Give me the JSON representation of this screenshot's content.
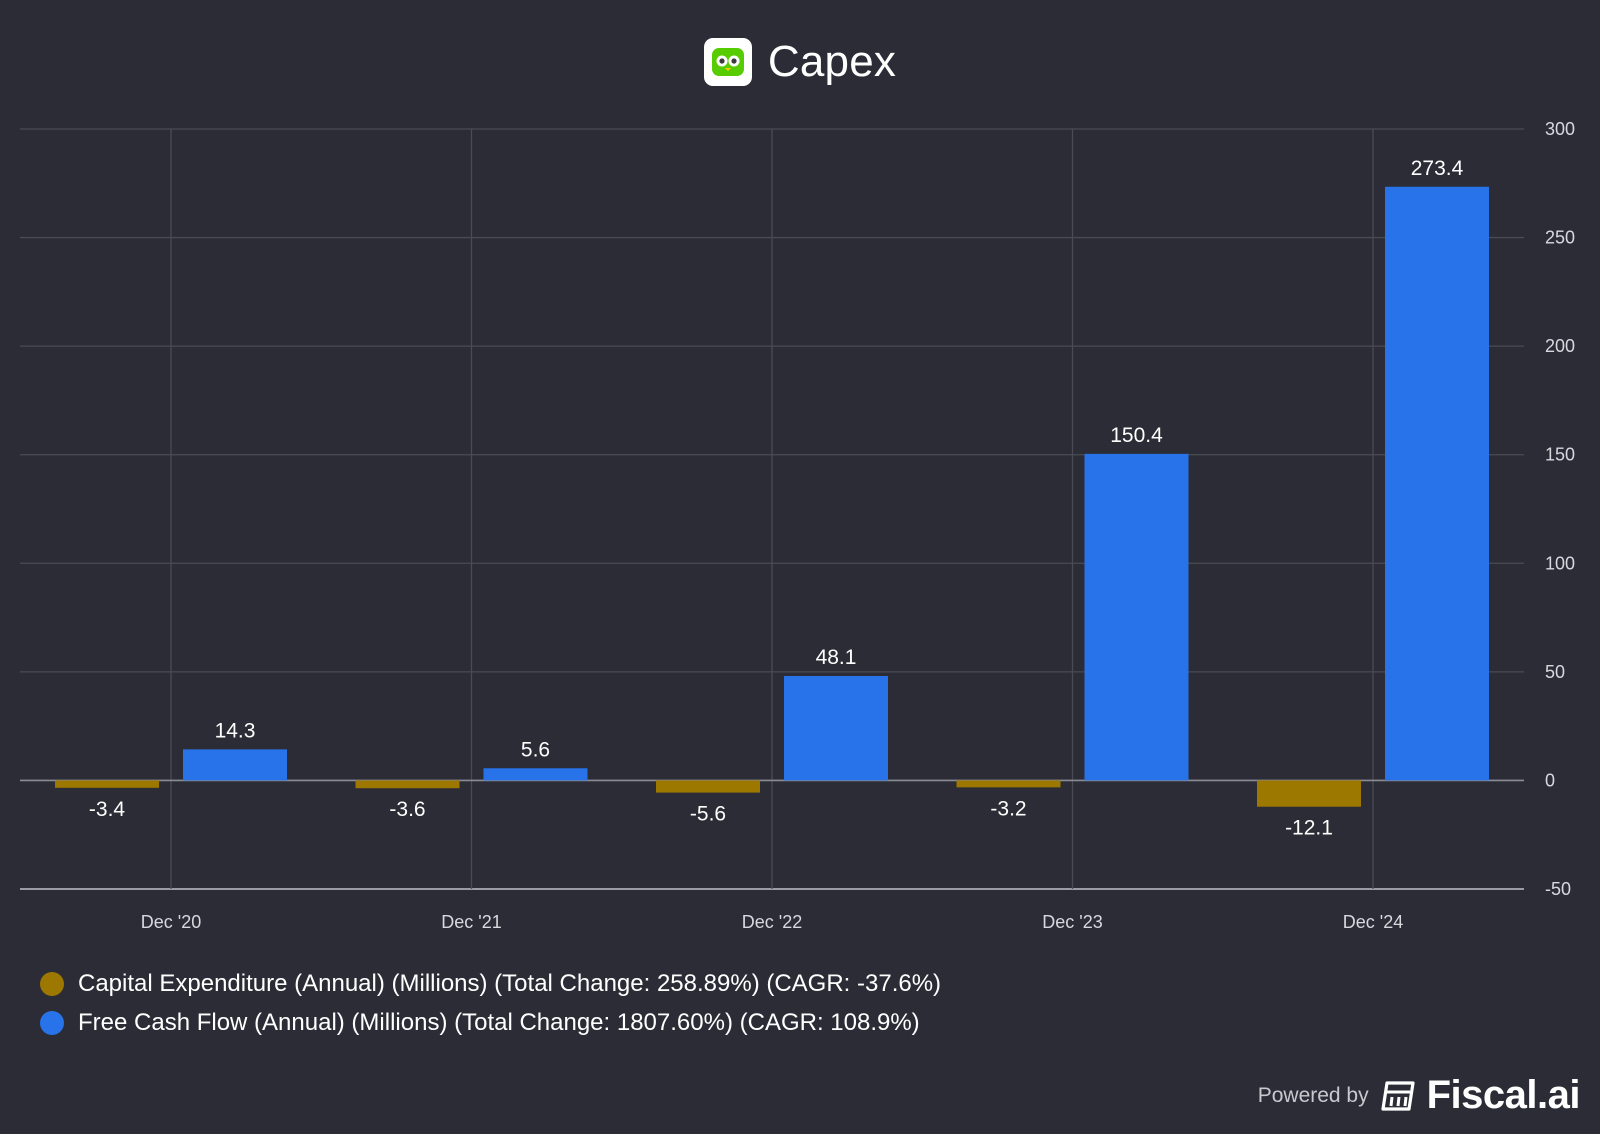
{
  "header": {
    "title": "Capex",
    "logo_icon": "owl-logo-icon"
  },
  "footer": {
    "powered_by": "Powered by",
    "brand": "Fiscal.ai",
    "brand_icon": "fiscal-ai-logo-icon"
  },
  "colors": {
    "background": "#2b2c35",
    "grid": "#4a4b55",
    "capex": "#9c7800",
    "fcf": "#2873ea",
    "text": "#ffffff",
    "axis_text": "#d8d9de"
  },
  "chart_data": {
    "type": "bar",
    "title": "Capex",
    "categories": [
      "Dec '20",
      "Dec '21",
      "Dec '22",
      "Dec '23",
      "Dec '24"
    ],
    "series": [
      {
        "name": "Capital Expenditure (Annual) (Millions) (Total Change: 258.89%) (CAGR: -37.6%)",
        "values": [
          -3.4,
          -3.6,
          -5.6,
          -3.2,
          -12.1
        ],
        "labels": [
          "-3.4",
          "-3.6",
          "-5.6",
          "-3.2",
          "-12.1"
        ],
        "color": "#9c7800"
      },
      {
        "name": "Free Cash Flow (Annual) (Millions) (Total Change: 1807.60%) (CAGR: 108.9%)",
        "values": [
          14.3,
          5.6,
          48.1,
          150.4,
          273.4
        ],
        "labels": [
          "14.3",
          "5.6",
          "48.1",
          "150.4",
          "273.4"
        ],
        "color": "#2873ea"
      }
    ],
    "ylim": [
      -50,
      300
    ],
    "yticks": [
      300,
      250,
      200,
      150,
      100,
      50,
      0,
      -50
    ],
    "ytick_labels": [
      "300",
      "250",
      "200",
      "150",
      "100",
      "50",
      "0",
      "-50"
    ],
    "y_axis_side": "right",
    "grid": true,
    "legend_position": "bottom-left",
    "xlabel": "",
    "ylabel": ""
  }
}
